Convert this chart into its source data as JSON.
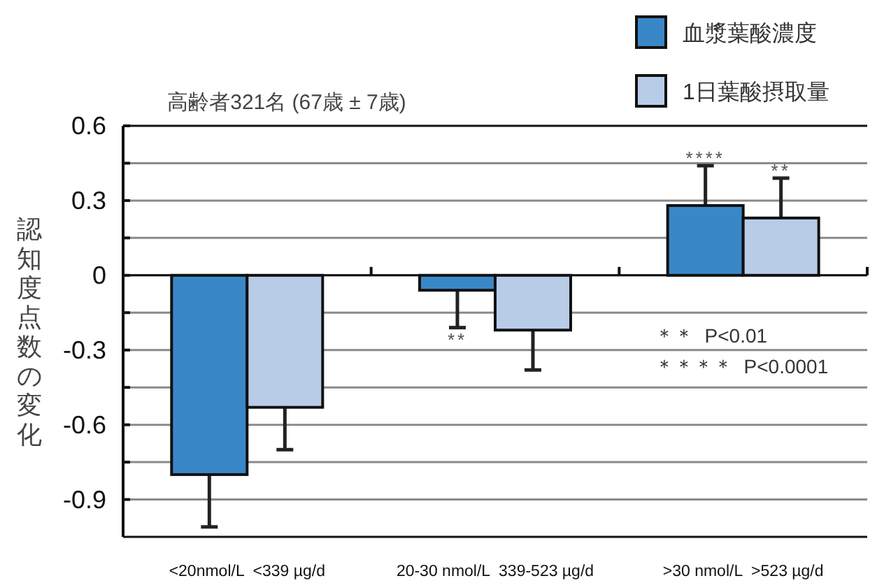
{
  "chart_data": {
    "type": "bar",
    "title": "高齢者321名 (67歳 ± 7歳)",
    "ylabel": "認知度点数の変化",
    "categories": [
      "<20nmol/L  <339 µg/d",
      "20-30 nmol/L  339-523 µg/d",
      ">30 nmol/L  >523 µg/d"
    ],
    "series": [
      {
        "name": "血漿葉酸濃度",
        "color": "#3a87c8",
        "values": [
          -0.8,
          -0.06,
          0.28
        ],
        "errors": [
          [
            -1.01,
            -0.8
          ],
          [
            -0.21,
            -0.06
          ],
          [
            0.28,
            0.44
          ]
        ]
      },
      {
        "name": "1日葉酸摂取量",
        "color": "#b8cce8",
        "values": [
          -0.53,
          -0.22,
          0.23
        ],
        "errors": [
          [
            -0.7,
            -0.53
          ],
          [
            -0.38,
            -0.22
          ],
          [
            0.23,
            0.39
          ]
        ]
      }
    ],
    "ylim": [
      -1.05,
      0.6
    ],
    "yticks": [
      0.6,
      {
        "value": 0.45,
        "label": null
      },
      0.3,
      {
        "value": 0.15,
        "label": null
      },
      0,
      {
        "value": -0.15,
        "label": null
      },
      -0.3,
      {
        "value": -0.45,
        "label": null
      },
      -0.6,
      {
        "value": -0.75,
        "label": null
      },
      -0.9
    ],
    "grid": "y",
    "legend": "top right",
    "annotations": [
      {
        "text": "**",
        "x": "20-30 nmol/L  339-523 µg/d",
        "y": -0.06
      },
      {
        "text": "****",
        "x": ">30 nmol/L  >523 µg/d",
        "y": 0.28
      },
      {
        "text": "**",
        "x": ">30 nmol/L  >523 µg/d",
        "y": 0.23
      },
      "＊＊  P<0.01",
      "＊＊＊＊  P<0.0001"
    ]
  }
}
